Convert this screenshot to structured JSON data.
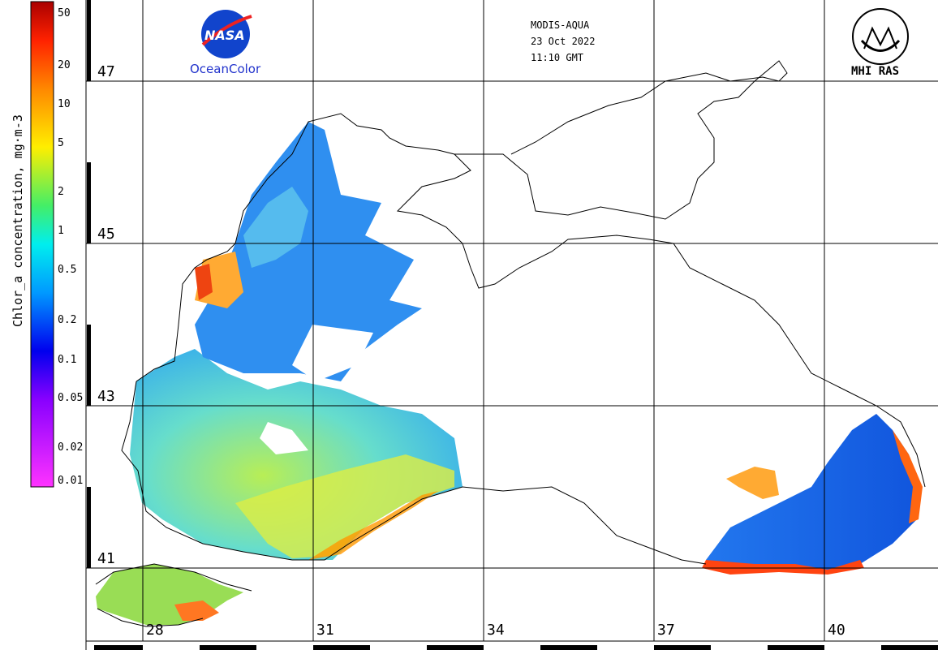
{
  "colorbar": {
    "title": "Chlor_a concentration, mg·m-3",
    "labels": [
      "50",
      "20",
      "10",
      "5",
      "2",
      "1",
      "0.5",
      "0.2",
      "0.1",
      "0.05",
      "0.02",
      "0.01"
    ],
    "colors": [
      "#cc0000",
      "#ff3300",
      "#ff9900",
      "#ffff00",
      "#33ff66",
      "#00ffff",
      "#0088ff",
      "#0000ff",
      "#8800ff",
      "#ff00ff"
    ]
  },
  "header": {
    "sensor": "MODIS-AQUA",
    "date": "23 Oct 2022",
    "time": "11:10 GMT"
  },
  "logos": {
    "nasa": "NASA",
    "oceancolor": "OceanColor",
    "mhi": "MHI RAS"
  },
  "latitude_labels": [
    "47",
    "45",
    "43",
    "41"
  ],
  "longitude_labels": [
    "28",
    "31",
    "34",
    "37",
    "40"
  ],
  "palette": {
    "coast": "#000000",
    "grid": "#000000",
    "chl_low": "#0066ff",
    "chl_mid": "#44ddcc",
    "chl_high": "#eedd33",
    "chl_max": "#dd2200"
  }
}
